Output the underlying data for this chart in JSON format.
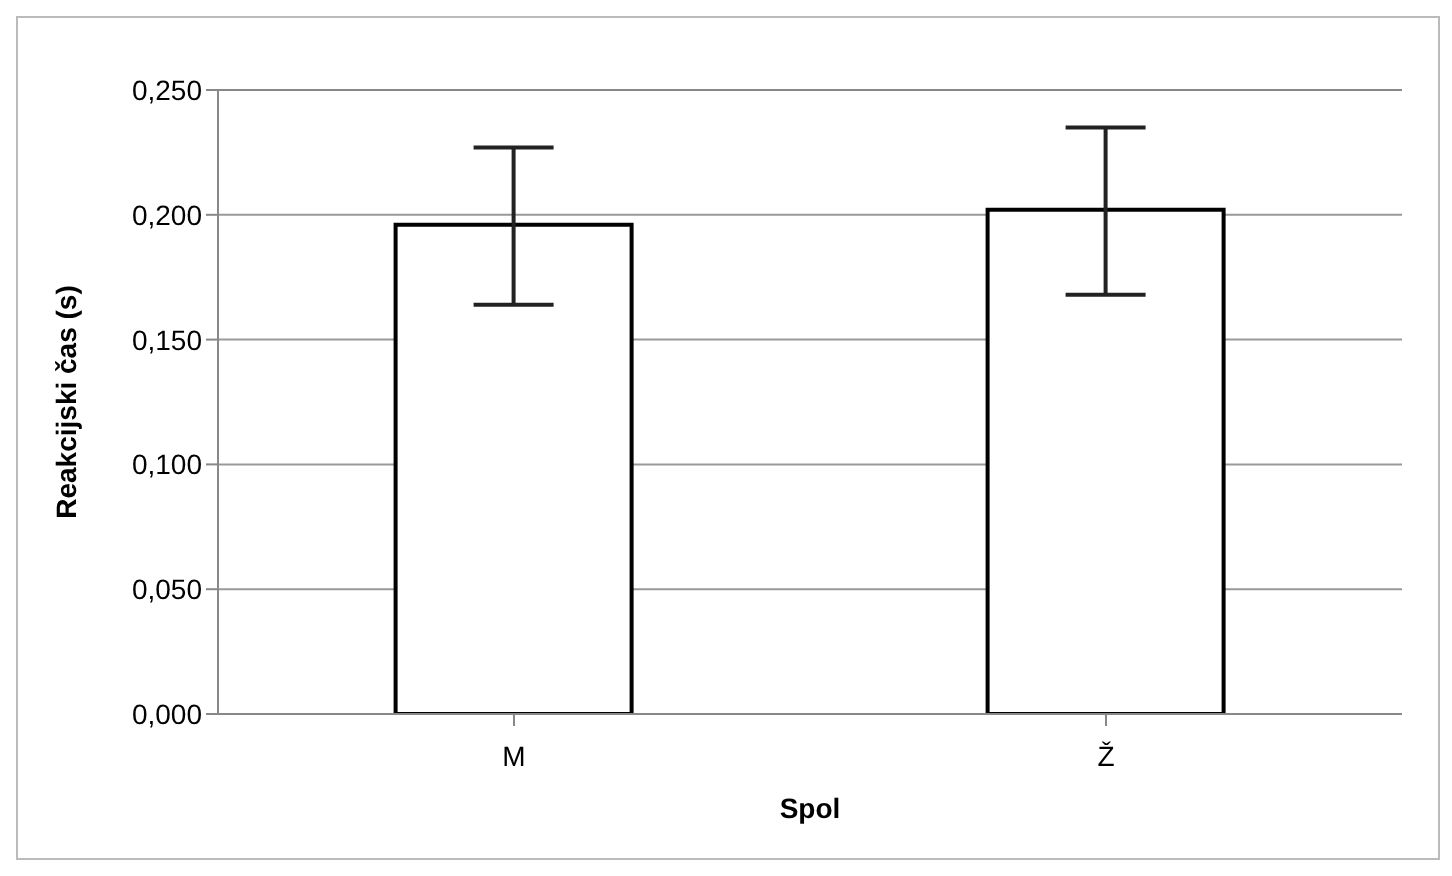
{
  "chart_data": {
    "type": "bar",
    "xlabel": "Spol",
    "ylabel": "Reakcijski čas (s)",
    "categories": [
      "M",
      "Ž"
    ],
    "values": [
      0.196,
      0.202
    ],
    "errors": [
      [
        0.164,
        0.227
      ],
      [
        0.168,
        0.235
      ]
    ],
    "color": "#ffffff",
    "ylim": [
      0,
      0.25
    ],
    "yticks": [
      {
        "value": 0,
        "label": "0,000"
      },
      {
        "value": 0.05,
        "label": "0,050"
      },
      {
        "value": 0.1,
        "label": "0,100"
      },
      {
        "value": 0.15,
        "label": "0,150"
      },
      {
        "value": 0.2,
        "label": "0,200"
      },
      {
        "value": 0.25,
        "label": "0,250"
      }
    ],
    "grid": "y"
  }
}
